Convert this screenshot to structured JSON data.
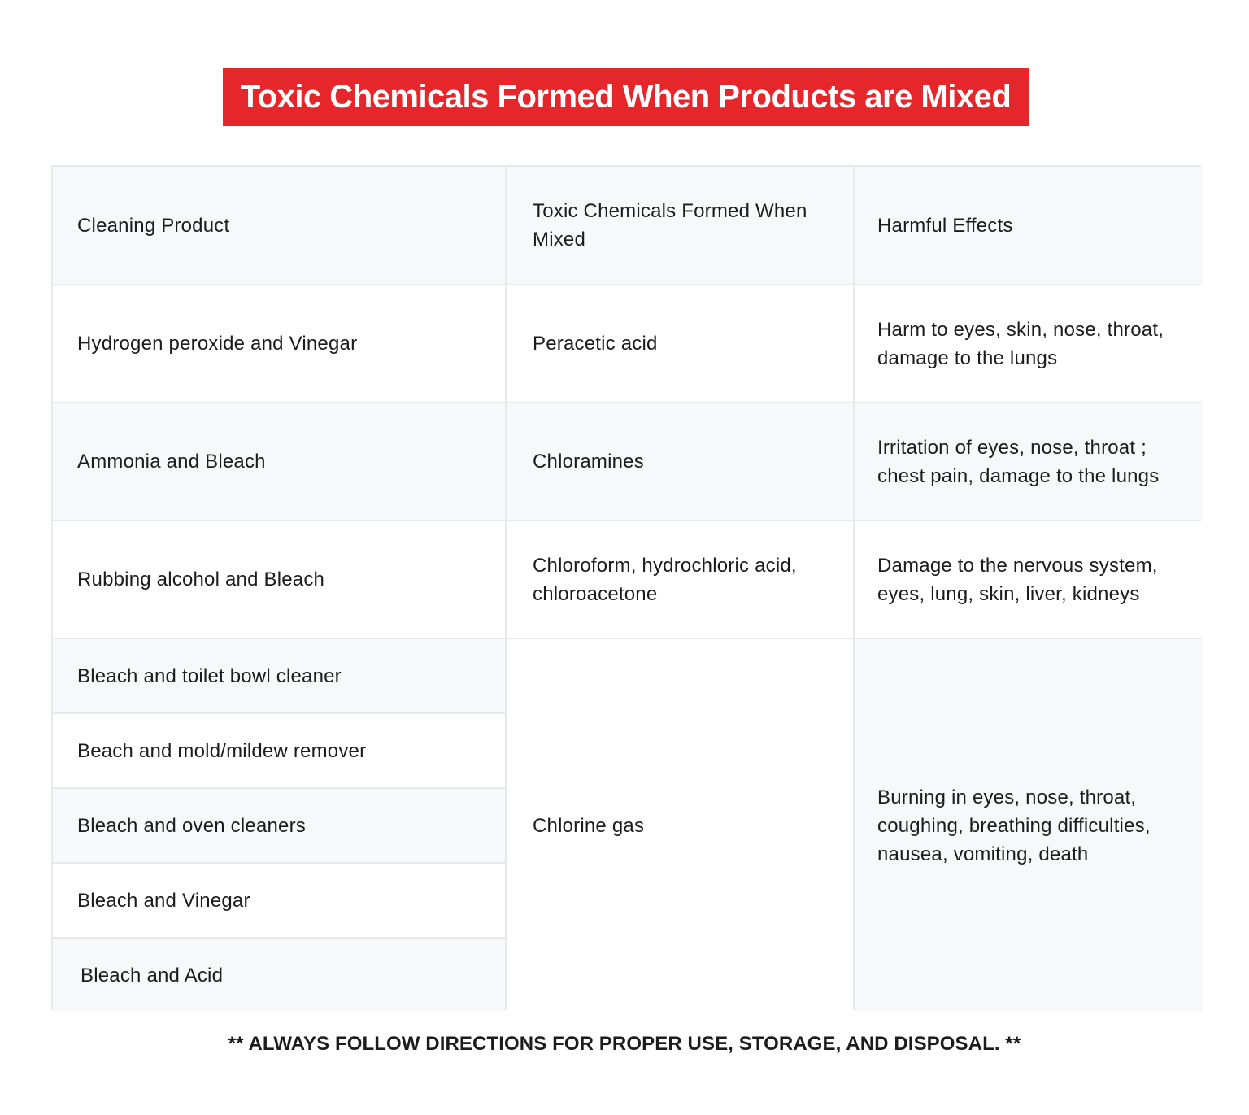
{
  "title": "Toxic Chemicals Formed When Products are Mixed",
  "table": {
    "headers": [
      "Cleaning Product",
      "Toxic Chemicals Formed When Mixed",
      "Harmful Effects"
    ],
    "rows": [
      {
        "product": "Hydrogen peroxide and Vinegar",
        "chemical": "Peracetic acid",
        "effects": "Harm to eyes, skin, nose, throat, damage to the lungs"
      },
      {
        "product": "Ammonia and Bleach",
        "chemical": "Chloramines",
        "effects": "Irritation of eyes, nose, throat ; chest pain, damage to the lungs"
      },
      {
        "product": "Rubbing alcohol and Bleach",
        "chemical": "Chloroform, hydrochloric acid, chloroacetone",
        "effects": "Damage to the nervous system, eyes, lung, skin, liver, kidneys"
      }
    ],
    "chlorine_group": {
      "products": [
        "Bleach and toilet bowl cleaner",
        "Beach and mold/mildew remover",
        "Bleach and oven cleaners",
        "Bleach and Vinegar",
        "Bleach and Acid"
      ],
      "chemical": "Chlorine gas",
      "effects": "Burning in eyes, nose, throat, coughing, breathing difficulties, nausea, vomiting, death"
    }
  },
  "footer_note": "** ALWAYS FOLLOW DIRECTIONS FOR PROPER USE, STORAGE, AND DISPOSAL. **",
  "colors": {
    "banner": "#e5262a",
    "row_shade": "#f7f8fa",
    "grid_line": "#e8e9eb"
  }
}
